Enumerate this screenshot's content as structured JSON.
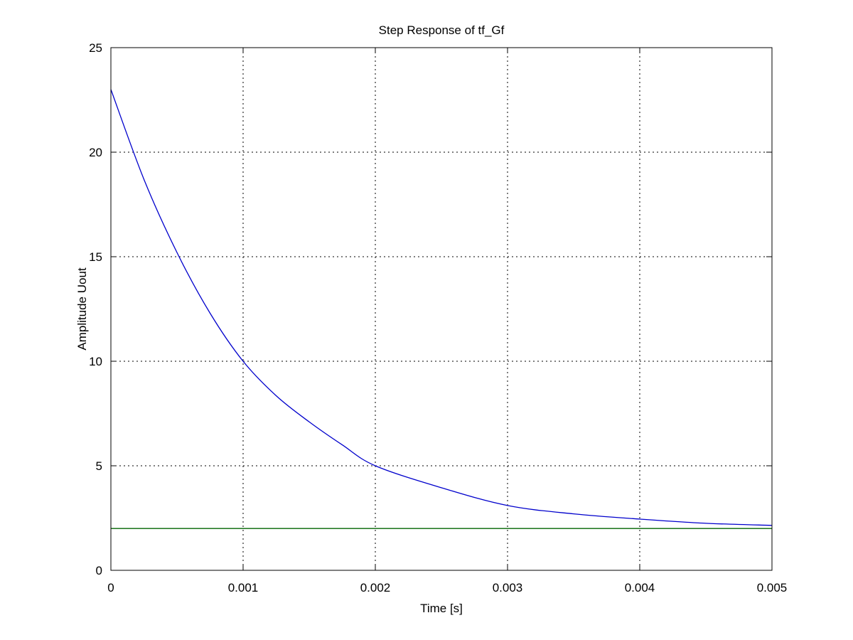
{
  "chart_data": {
    "type": "line",
    "title": "Step Response of tf_Gf",
    "xlabel": "Time [s]",
    "ylabel": "Amplitude Uout",
    "xlim": [
      0,
      0.005
    ],
    "ylim": [
      0,
      25
    ],
    "grid": true,
    "x_ticks": [
      "0",
      "0.001",
      "0.002",
      "0.003",
      "0.004",
      "0.005"
    ],
    "y_ticks": [
      "0",
      "5",
      "10",
      "15",
      "20",
      "25"
    ],
    "series": [
      {
        "color": "#0000cc",
        "x": [
          0,
          0.00025,
          0.0005,
          0.00075,
          0.001,
          0.00125,
          0.0015,
          0.00175,
          0.002,
          0.0025,
          0.003,
          0.0035,
          0.004,
          0.0045,
          0.005
        ],
        "y": [
          23.0,
          18.7,
          15.2,
          12.3,
          10.0,
          8.35,
          7.1,
          6.0,
          5.0,
          3.95,
          3.1,
          2.7,
          2.45,
          2.25,
          2.15
        ]
      },
      {
        "color": "#006400",
        "x": [
          0,
          0.005
        ],
        "y": [
          2.0,
          2.0
        ]
      }
    ]
  }
}
